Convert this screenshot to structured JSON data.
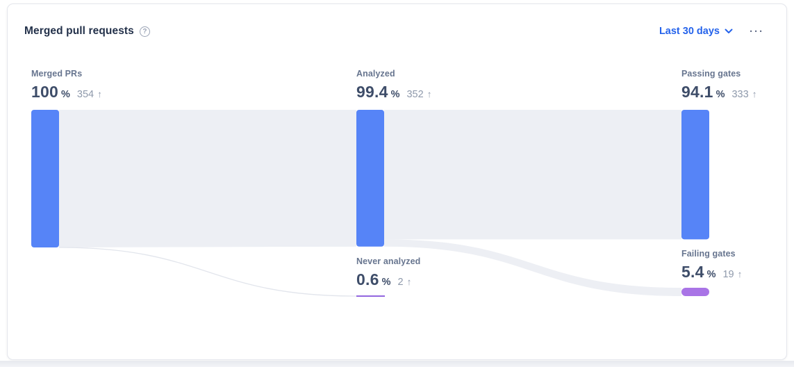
{
  "card": {
    "title": "Merged pull requests",
    "period_selector": {
      "label": "Last 30 days"
    }
  },
  "glyphs": {
    "help": "?",
    "ellipsis": "···",
    "up_arrow": "↑"
  },
  "colors": {
    "accent_blue": "#2563EB",
    "bar_blue": "#5684F7",
    "flow_gray": "#EDEFF4",
    "flow_edge": "#E2E5EC",
    "purple_pill": "#A974E6",
    "purple_line": "#9266DF",
    "title": "#24324B",
    "label": "#67758F",
    "value": "#3E4D69",
    "count": "#8E99AB",
    "border": "#E4E6EC"
  },
  "chart_data": {
    "type": "sankey",
    "unit": "%",
    "percent_sign": "%",
    "nodes": [
      {
        "id": "merged",
        "label": "Merged PRs",
        "pct": 100,
        "count": 354,
        "trend": "up"
      },
      {
        "id": "analyzed",
        "label": "Analyzed",
        "pct": 99.4,
        "count": 352,
        "trend": "up"
      },
      {
        "id": "passing",
        "label": "Passing gates",
        "pct": 94.1,
        "count": 333,
        "trend": "up"
      },
      {
        "id": "never",
        "label": "Never analyzed",
        "pct": 0.6,
        "count": 2,
        "trend": "up"
      },
      {
        "id": "failing",
        "label": "Failing gates",
        "pct": 5.4,
        "count": 19,
        "trend": "up"
      }
    ],
    "links": [
      {
        "source": "merged",
        "target": "analyzed",
        "pct": 99.4
      },
      {
        "source": "merged",
        "target": "never",
        "pct": 0.6
      },
      {
        "source": "analyzed",
        "target": "passing",
        "pct": 94.1
      },
      {
        "source": "analyzed",
        "target": "failing",
        "pct": 5.4
      }
    ],
    "legend": null,
    "grid": false
  }
}
